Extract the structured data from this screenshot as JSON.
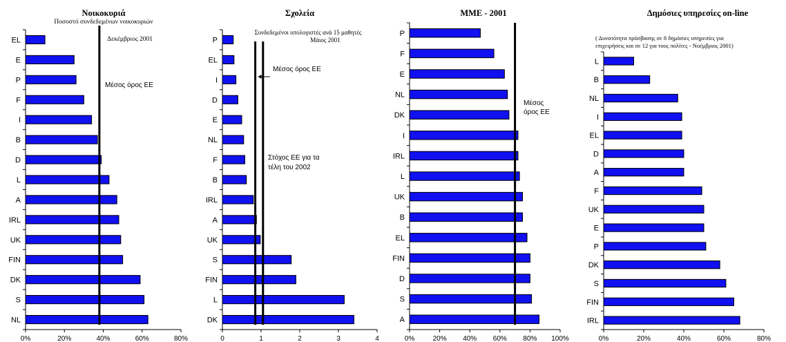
{
  "colors": {
    "bar": "#1010f0",
    "bar_stroke": "#000000",
    "axis": "#000000",
    "ref_line": "#000000"
  },
  "chart_data": [
    {
      "type": "bar",
      "orientation": "horizontal",
      "title": "Νοικοκυριά",
      "subtitle_lines": [
        "Ποσοστό συνδεδεμένων νοικοκυριών",
        "Δεκέμβριος 2001"
      ],
      "categories": [
        "EL",
        "E",
        "P",
        "F",
        "I",
        "B",
        "D",
        "L",
        "A",
        "IRL",
        "UK",
        "FIN",
        "DK",
        "S",
        "NL"
      ],
      "values": [
        10,
        25,
        26,
        30,
        34,
        37,
        39,
        43,
        47,
        48,
        49,
        50,
        59,
        61,
        63
      ],
      "xlim": [
        0,
        80
      ],
      "ticks": [
        0,
        20,
        40,
        60,
        80
      ],
      "tick_labels": [
        "0%",
        "20%",
        "40%",
        "60%",
        "80%"
      ],
      "reference_lines": [
        {
          "value": 38,
          "label_lines": [
            "Μέσος όρος ΕΕ"
          ]
        }
      ],
      "grid": false
    },
    {
      "type": "bar",
      "orientation": "horizontal",
      "title": "Σχολεία",
      "subtitle_lines": [
        "Συνδεδεμένοι υπολογιστές ανά 15 μαθητές",
        "Μάιος 2001"
      ],
      "categories": [
        "P",
        "EL",
        "I",
        "D",
        "E",
        "NL",
        "F",
        "B",
        "IRL",
        "A",
        "UK",
        "S",
        "FIN",
        "L",
        "DK"
      ],
      "values": [
        0.28,
        0.3,
        0.35,
        0.4,
        0.5,
        0.55,
        0.58,
        0.62,
        0.8,
        0.88,
        0.98,
        1.78,
        1.9,
        3.15,
        3.4
      ],
      "xlim": [
        0,
        4
      ],
      "ticks": [
        0,
        1,
        2,
        3,
        4
      ],
      "tick_labels": [
        "0",
        "1",
        "2",
        "3",
        "4"
      ],
      "reference_lines": [
        {
          "value": 0.85,
          "label_lines": [
            "Μέσος όρος ΕΕ"
          ]
        },
        {
          "value": 1.05,
          "label_lines": [
            "Στόχος ΕΕ για τα",
            "τέλη του 2002"
          ]
        }
      ],
      "grid": false
    },
    {
      "type": "bar",
      "orientation": "horizontal",
      "title": "ΜΜΕ - 2001",
      "subtitle_lines": [],
      "categories": [
        "P",
        "F",
        "E",
        "NL",
        "DK",
        "I",
        "IRL",
        "L",
        "UK",
        "B",
        "EL",
        "FIN",
        "D",
        "S",
        "A"
      ],
      "values": [
        47,
        56,
        63,
        65,
        66,
        72,
        72,
        73,
        75,
        75,
        78,
        80,
        80,
        81,
        86
      ],
      "xlim": [
        0,
        100
      ],
      "ticks": [
        0,
        20,
        40,
        60,
        80,
        100
      ],
      "tick_labels": [
        "0%",
        "20%",
        "40%",
        "60%",
        "80%",
        "100%"
      ],
      "reference_lines": [
        {
          "value": 70,
          "label_lines": [
            "Μέσος",
            "όρος ΕΕ"
          ]
        }
      ],
      "grid": false
    },
    {
      "type": "bar",
      "orientation": "horizontal",
      "title": "Δημόσιες υπηρεσίες on-line",
      "subtitle_lines": [
        "( Δυνατότητα πρόσβασης σε 8 δημόσιες υπηρεσίες για",
        "επιχειρήσεις και σε 12 για τους πολίτες - Νοέμβριος 2001)"
      ],
      "categories": [
        "L",
        "B",
        "NL",
        "I",
        "EL",
        "D",
        "A",
        "F",
        "UK",
        "E",
        "P",
        "DK",
        "S",
        "FIN",
        "IRL"
      ],
      "values": [
        15,
        23,
        37,
        39,
        39,
        40,
        40,
        49,
        50,
        50,
        51,
        58,
        61,
        65,
        68
      ],
      "xlim": [
        0,
        80
      ],
      "ticks": [
        0,
        20,
        40,
        60,
        80
      ],
      "tick_labels": [
        "0%",
        "20%",
        "40%",
        "60%",
        "80%"
      ],
      "reference_lines": [],
      "grid": false
    }
  ]
}
